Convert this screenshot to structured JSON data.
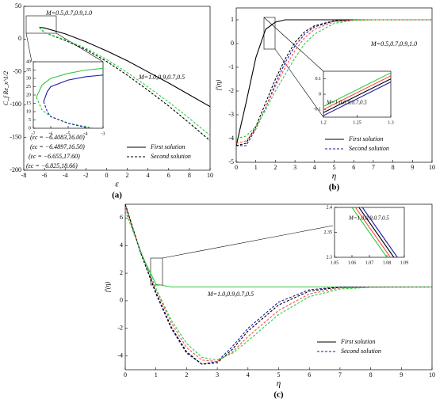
{
  "chart_data": [
    {
      "type": "line",
      "label": "(a)",
      "xlabel": "ε",
      "ylabel": "C_f Re_x^1/2",
      "xlim": [
        -8,
        10
      ],
      "ylim": [
        -200,
        50
      ],
      "xticks": [
        -8,
        -6,
        -4,
        -2,
        0,
        2,
        4,
        6,
        8,
        10
      ],
      "yticks": [
        -200,
        -150,
        -100,
        -50,
        0,
        50
      ],
      "series": [
        {
          "name": "First solution",
          "dashed": false,
          "curves": [
            {
              "color": "#000000",
              "x": [
                -6.5,
                -6,
                -4,
                -2,
                0,
                2,
                4,
                6,
                8,
                10
              ],
              "values": [
                18,
                17,
                8,
                -4,
                -18,
                -33,
                -50,
                -67,
                -85,
                -103
              ]
            }
          ]
        },
        {
          "name": "Second solution",
          "dashed": true,
          "curves": [
            {
              "color": "#000000",
              "x": [
                -6.5,
                -6,
                -4,
                -2,
                0,
                2,
                4,
                6,
                8,
                10
              ],
              "values": [
                18,
                10,
                -2,
                -16,
                -34,
                -55,
                -78,
                -102,
                -128,
                -155
              ]
            },
            {
              "color": "#2ecc40",
              "x": [
                -6.5,
                -6,
                -4,
                -2,
                0,
                2,
                4,
                6,
                8,
                10
              ],
              "values": [
                18,
                10,
                -1,
                -14,
                -31,
                -51,
                -73,
                -96,
                -121,
                -147
              ]
            }
          ]
        }
      ],
      "annotations": [
        "M=0.5,0.7,0.9,1.0",
        "M=1.0,0.9,0.7,0.5",
        "(εc = −6.4083,16.00)",
        "(εc = −6.4897,16.50)",
        "(εc = −6.655,17.60)",
        "(εc = −6.825,18.66)"
      ],
      "inset": {
        "xlim": [
          -7,
          -3
        ],
        "ylim": [
          0,
          40
        ],
        "xticks": [
          -7,
          -6,
          -5,
          -4,
          -3
        ],
        "yticks": [
          0,
          5,
          10,
          15,
          20,
          25,
          30,
          35,
          40
        ],
        "series": [
          {
            "dashed": false,
            "curves": [
              {
                "color": "#2ecc40",
                "x": [
                  -6.825,
                  -6.5,
                  -6,
                  -5,
                  -4,
                  -3
                ],
                "values": [
                  18.66,
                  26,
                  30,
                  33,
                  35,
                  36
                ]
              },
              {
                "color": "#1a1aa6",
                "x": [
                  -6.4083,
                  -6.2,
                  -6,
                  -5,
                  -4,
                  -3
                ],
                "values": [
                  16,
                  22,
                  25,
                  29,
                  31,
                  32
                ]
              }
            ]
          },
          {
            "dashed": true,
            "curves": [
              {
                "color": "#2ecc40",
                "x": [
                  -6.825,
                  -6.5,
                  -6,
                  -5,
                  -4,
                  -3.5
                ],
                "values": [
                  18.66,
                  11,
                  7,
                  3,
                  1,
                  0
                ]
              },
              {
                "color": "#1a1aa6",
                "x": [
                  -6.4083,
                  -6.2,
                  -6,
                  -5,
                  -4,
                  -3.8
                ],
                "values": [
                  16,
                  10,
                  7,
                  3,
                  0.5,
                  0
                ]
              }
            ]
          }
        ]
      }
    },
    {
      "type": "line",
      "label": "(b)",
      "xlabel": "η",
      "ylabel": "f′(η)",
      "xlim": [
        0,
        10
      ],
      "ylim": [
        -5,
        1.5
      ],
      "xticks": [
        0,
        1,
        2,
        3,
        4,
        5,
        6,
        7,
        8,
        9,
        10
      ],
      "yticks": [
        -5,
        -4,
        -3,
        -2,
        -1,
        0,
        1
      ],
      "x": [
        0,
        0.5,
        1,
        1.5,
        2,
        2.5,
        3,
        3.5,
        4,
        5,
        6,
        7,
        8,
        10
      ],
      "series": [
        {
          "name": "First solution",
          "dashed": false,
          "curves": [
            {
              "color": "#000000",
              "values": [
                -4.3,
                -2.5,
                -0.6,
                0.6,
                0.9,
                1,
                1,
                1,
                1,
                1,
                1,
                1,
                1,
                1
              ]
            }
          ]
        },
        {
          "name": "Second solution",
          "dashed": true,
          "curves": [
            {
              "color": "#1a1aa6",
              "values": [
                -4.3,
                -4.3,
                -3.6,
                -2.7,
                -1.7,
                -0.8,
                -0.1,
                0.4,
                0.7,
                0.95,
                1,
                1,
                1,
                1
              ]
            },
            {
              "color": "#000000",
              "values": [
                -4.3,
                -4.2,
                -3.5,
                -2.5,
                -1.5,
                -0.65,
                0.05,
                0.5,
                0.75,
                0.96,
                1,
                1,
                1,
                1
              ]
            },
            {
              "color": "#ff4d4d",
              "values": [
                -4.2,
                -4.1,
                -3.6,
                -2.7,
                -1.8,
                -1,
                -0.3,
                0.25,
                0.6,
                0.92,
                0.99,
                1,
                1,
                1
              ]
            },
            {
              "color": "#2ecc40",
              "values": [
                -4,
                -3.9,
                -3.5,
                -2.8,
                -2,
                -1.3,
                -0.6,
                0,
                0.4,
                0.85,
                0.98,
                1,
                1,
                1
              ]
            }
          ]
        }
      ],
      "annotations": [
        "M=0.5,0.7,0.9,1.0"
      ],
      "inset": {
        "xlim": [
          1.2,
          1.3
        ],
        "ylim": [
          -0.15,
          0.15
        ],
        "xticks": [
          1.2,
          1.25,
          1.3
        ],
        "yticks": [
          -0.1,
          0,
          0.1
        ],
        "annotations": [
          "M=1.0,0.9,0.7,0.5"
        ],
        "series": [
          {
            "dashed": false,
            "curves": [
              {
                "color": "#2ecc40",
                "x": [
                  1.2,
                  1.3
                ],
                "values": [
                  -0.08,
                  0.14
                ]
              },
              {
                "color": "#ff4d4d",
                "x": [
                  1.2,
                  1.3
                ],
                "values": [
                  -0.1,
                  0.12
                ]
              },
              {
                "color": "#000000",
                "x": [
                  1.2,
                  1.3
                ],
                "values": [
                  -0.12,
                  0.1
                ]
              },
              {
                "color": "#1a1aa6",
                "x": [
                  1.2,
                  1.3
                ],
                "values": [
                  -0.14,
                  0.08
                ]
              }
            ]
          }
        ]
      }
    },
    {
      "type": "line",
      "label": "(c)",
      "xlabel": "η",
      "ylabel": "f′(η)",
      "xlim": [
        0,
        10
      ],
      "ylim": [
        -5,
        7
      ],
      "xticks": [
        0,
        1,
        2,
        3,
        4,
        5,
        6,
        7,
        8,
        9,
        10
      ],
      "yticks": [
        -4,
        -2,
        0,
        2,
        4,
        6
      ],
      "x": [
        0,
        0.5,
        1,
        1.5,
        2,
        2.5,
        3,
        3.5,
        4,
        5,
        6,
        7,
        8,
        10
      ],
      "series": [
        {
          "name": "First solution",
          "dashed": false,
          "curves": [
            {
              "color": "#2ecc40",
              "values": [
                7,
                3.5,
                1.2,
                1,
                1,
                1,
                1,
                1,
                1,
                1,
                1,
                1,
                1,
                1
              ]
            }
          ]
        },
        {
          "name": "Second solution",
          "dashed": true,
          "curves": [
            {
              "color": "#1a1aa6",
              "values": [
                7,
                3.5,
                0.5,
                -2,
                -3.8,
                -4.6,
                -4.4,
                -3.3,
                -2,
                -0.1,
                0.8,
                1,
                1,
                1
              ]
            },
            {
              "color": "#000000",
              "values": [
                7,
                3.5,
                0.6,
                -1.9,
                -3.7,
                -4.6,
                -4.5,
                -3.5,
                -2.2,
                -0.3,
                0.7,
                0.98,
                1,
                1
              ]
            },
            {
              "color": "#ff4d4d",
              "values": [
                6.8,
                3.6,
                0.8,
                -1.6,
                -3.4,
                -4.3,
                -4.4,
                -3.7,
                -2.6,
                -0.7,
                0.5,
                0.93,
                0.99,
                1
              ]
            },
            {
              "color": "#2ecc40",
              "values": [
                6.5,
                3.6,
                0.9,
                -1.4,
                -3.1,
                -4.1,
                -4.3,
                -3.8,
                -2.9,
                -1,
                0.3,
                0.85,
                0.98,
                1
              ]
            }
          ]
        }
      ],
      "annotations": [
        "M=1.0,0.9,0.7,0.5"
      ],
      "inset": {
        "xlim": [
          1.05,
          1.09
        ],
        "ylim": [
          2.3,
          2.4
        ],
        "xticks": [
          1.05,
          1.06,
          1.07,
          1.08,
          1.09
        ],
        "yticks": [
          2.3,
          2.35,
          2.4
        ],
        "annotations": [
          "M=1.0,0.9,0.7,0.5"
        ],
        "series": [
          {
            "dashed": false,
            "curves": [
              {
                "color": "#2ecc40",
                "x": [
                  1.06,
                  1.08
                ],
                "values": [
                  2.4,
                  2.3
                ]
              },
              {
                "color": "#ff4d4d",
                "x": [
                  1.062,
                  1.082
                ],
                "values": [
                  2.4,
                  2.3
                ]
              },
              {
                "color": "#000000",
                "x": [
                  1.064,
                  1.084
                ],
                "values": [
                  2.4,
                  2.3
                ]
              },
              {
                "color": "#1a1aa6",
                "x": [
                  1.066,
                  1.086
                ],
                "values": [
                  2.4,
                  2.3
                ]
              }
            ]
          }
        ]
      }
    }
  ]
}
